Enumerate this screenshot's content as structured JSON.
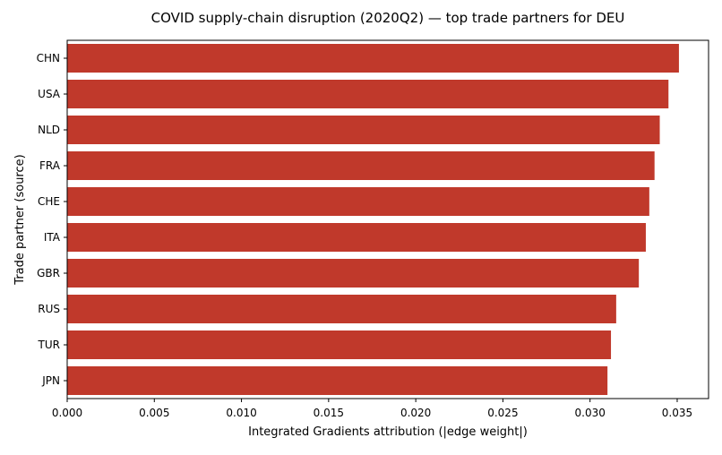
{
  "chart_data": {
    "type": "bar",
    "orientation": "horizontal",
    "title": "COVID supply-chain disruption (2020Q2) — top trade partners for DEU",
    "xlabel": "Integrated Gradients attribution (|edge weight|)",
    "ylabel": "Trade partner (source)",
    "categories": [
      "CHN",
      "USA",
      "NLD",
      "FRA",
      "CHE",
      "ITA",
      "GBR",
      "RUS",
      "TUR",
      "JPN"
    ],
    "values": [
      0.0351,
      0.0345,
      0.034,
      0.0337,
      0.0334,
      0.0332,
      0.0328,
      0.0315,
      0.0312,
      0.031
    ],
    "xlim": [
      0,
      0.0368
    ],
    "xticks": [
      "0.000",
      "0.005",
      "0.010",
      "0.015",
      "0.020",
      "0.025",
      "0.030",
      "0.035"
    ],
    "grid": false,
    "legend": "none",
    "bar_color": "#c0392b"
  }
}
